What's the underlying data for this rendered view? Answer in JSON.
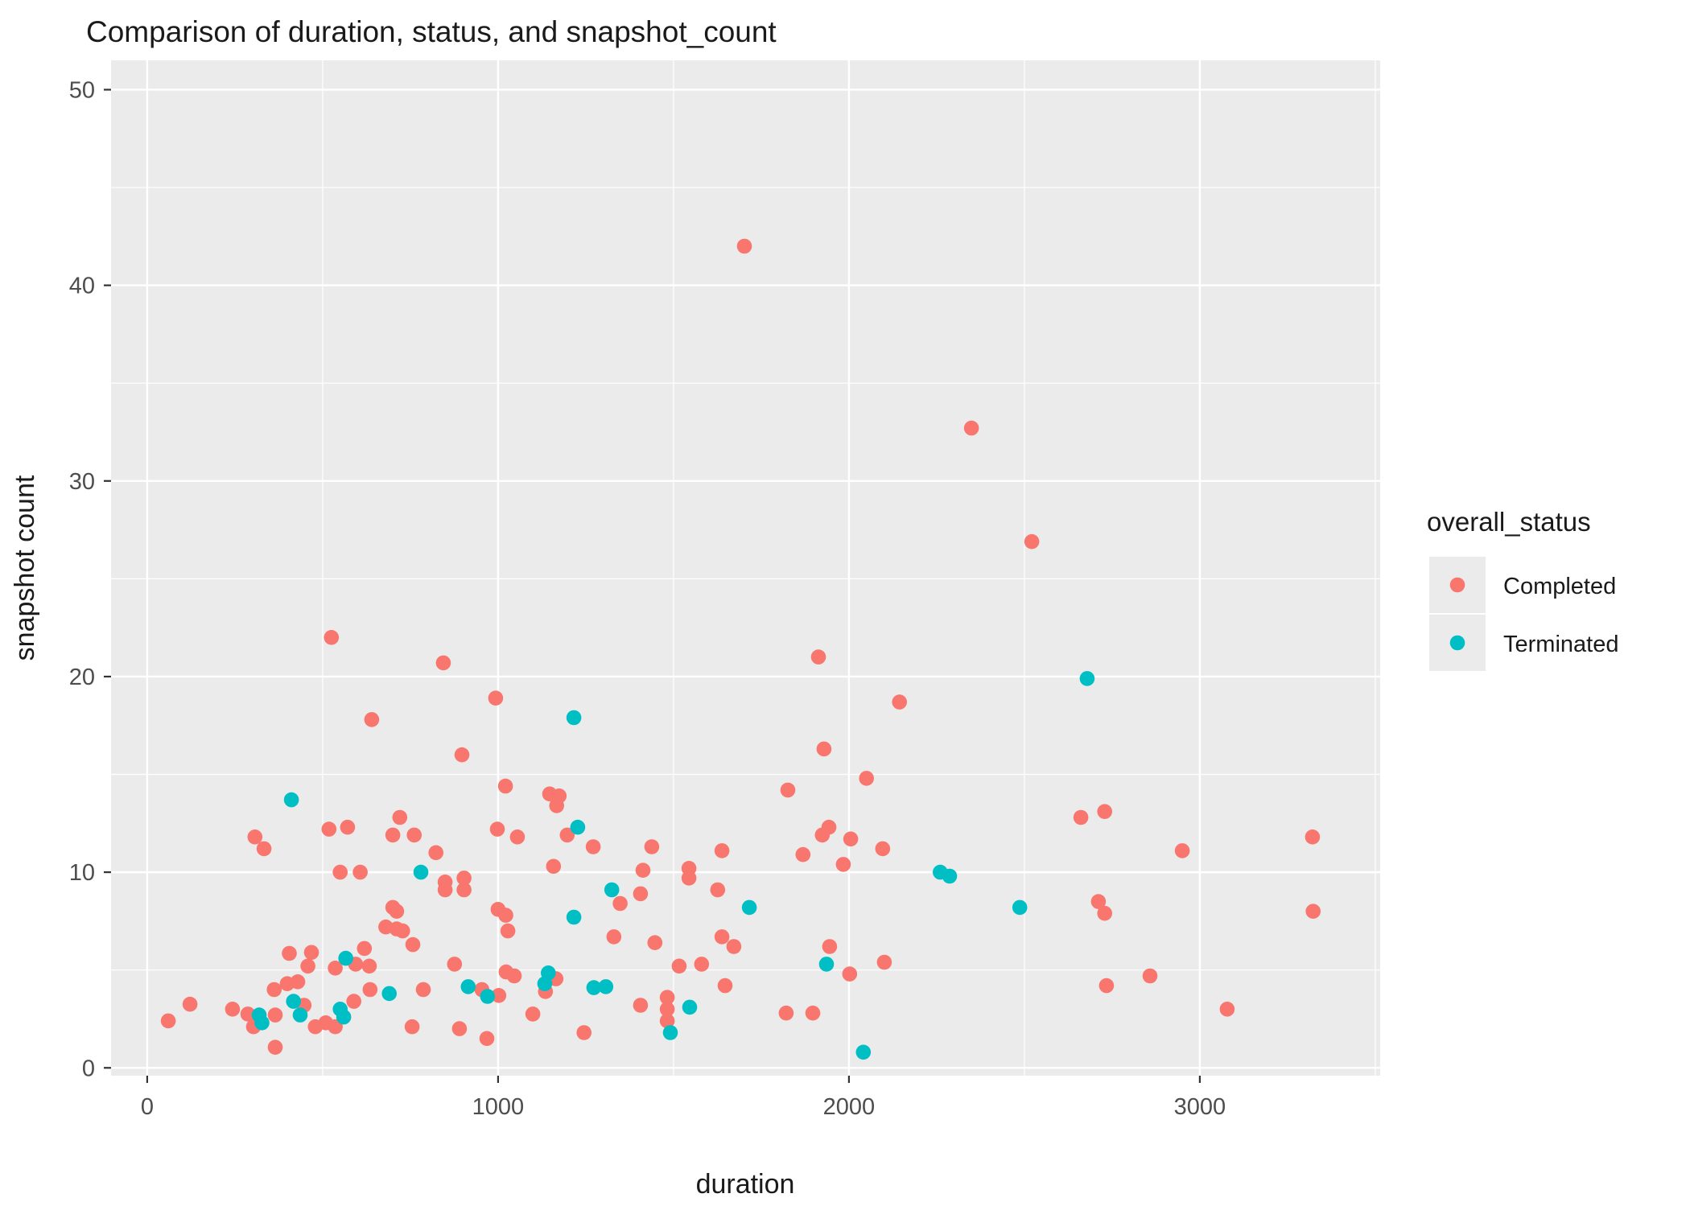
{
  "title": "Comparison of duration, status, and snapshot_count",
  "style": {
    "panel_bg": "#EBEBEB",
    "grid_color": "#FFFFFF",
    "tick_color": "#333333",
    "tick_label_color": "#4D4D4D",
    "point_radius": 9.3,
    "legend_key_bg": "#EBEBEB"
  },
  "legend": {
    "title": "overall_status",
    "items": [
      {
        "label": "Completed",
        "color": "#F8766D"
      },
      {
        "label": "Terminated",
        "color": "#00BFC4"
      }
    ]
  },
  "chart_data": {
    "type": "scatter",
    "title": "Comparison of duration, status, and snapshot_count",
    "xlabel": "duration",
    "ylabel": "snapshot count",
    "xlim": [
      -103,
      3514
    ],
    "ylim": [
      -0.4,
      51.5
    ],
    "x_major_ticks": [
      0,
      1000,
      2000,
      3000
    ],
    "x_minor_ticks": [
      500,
      1500,
      2500,
      3500
    ],
    "y_major_ticks": [
      0,
      10,
      20,
      30,
      40,
      50
    ],
    "y_minor_ticks": [
      5,
      15,
      25,
      35,
      45
    ],
    "grid": true,
    "legend_position": "right",
    "series": [
      {
        "name": "Completed",
        "color": "#F8766D",
        "points": [
          [
            60,
            2.4
          ],
          [
            122,
            3.25
          ],
          [
            243,
            3.0
          ],
          [
            287,
            2.75
          ],
          [
            303,
            2.1
          ],
          [
            307,
            11.8
          ],
          [
            333,
            11.2
          ],
          [
            362,
            4.0
          ],
          [
            365,
            2.7
          ],
          [
            365,
            1.05
          ],
          [
            399,
            4.3
          ],
          [
            405,
            5.85
          ],
          [
            468,
            5.9
          ],
          [
            429,
            4.4
          ],
          [
            447,
            3.2
          ],
          [
            458,
            5.2
          ],
          [
            479,
            2.1
          ],
          [
            509,
            2.3
          ],
          [
            518,
            12.2
          ],
          [
            525,
            22.0
          ],
          [
            536,
            2.1
          ],
          [
            536,
            5.1
          ],
          [
            550,
            10.0
          ],
          [
            571,
            12.3
          ],
          [
            589,
            3.4
          ],
          [
            594,
            5.3
          ],
          [
            607,
            10.0
          ],
          [
            619,
            6.1
          ],
          [
            633,
            5.2
          ],
          [
            635,
            4.0
          ],
          [
            640,
            17.8
          ],
          [
            680,
            7.2
          ],
          [
            700,
            8.2
          ],
          [
            700,
            11.9
          ],
          [
            711,
            8.0
          ],
          [
            711,
            7.1
          ],
          [
            720,
            12.8
          ],
          [
            728,
            7.0
          ],
          [
            757,
            6.3
          ],
          [
            761,
            11.9
          ],
          [
            787,
            4.0
          ],
          [
            755,
            2.1
          ],
          [
            823,
            11.0
          ],
          [
            844,
            20.7
          ],
          [
            849,
            9.5
          ],
          [
            849,
            9.1
          ],
          [
            876,
            5.3
          ],
          [
            890,
            2.0
          ],
          [
            897,
            16.0
          ],
          [
            903,
            9.7
          ],
          [
            903,
            9.1
          ],
          [
            954,
            4.0
          ],
          [
            968,
            1.5
          ],
          [
            993,
            18.9
          ],
          [
            998,
            12.2
          ],
          [
            1000,
            8.1
          ],
          [
            1002,
            3.7
          ],
          [
            1021,
            14.4
          ],
          [
            1022,
            7.8
          ],
          [
            1023,
            4.9
          ],
          [
            1028,
            7.0
          ],
          [
            1046,
            4.7
          ],
          [
            1055,
            11.8
          ],
          [
            1099,
            2.75
          ],
          [
            1135,
            3.9
          ],
          [
            1147,
            14.0
          ],
          [
            1158,
            10.3
          ],
          [
            1165,
            4.55
          ],
          [
            1167,
            13.4
          ],
          [
            1174,
            13.9
          ],
          [
            1197,
            11.9
          ],
          [
            1245,
            1.8
          ],
          [
            1271,
            11.3
          ],
          [
            1330,
            6.7
          ],
          [
            1348,
            8.4
          ],
          [
            1406,
            8.9
          ],
          [
            1406,
            3.2
          ],
          [
            1413,
            10.1
          ],
          [
            1438,
            11.3
          ],
          [
            1447,
            6.4
          ],
          [
            1482,
            3.6
          ],
          [
            1482,
            3.0
          ],
          [
            1482,
            2.4
          ],
          [
            1516,
            5.2
          ],
          [
            1544,
            10.2
          ],
          [
            1544,
            9.7
          ],
          [
            1580,
            5.3
          ],
          [
            1626,
            9.1
          ],
          [
            1638,
            11.1
          ],
          [
            1638,
            6.7
          ],
          [
            1647,
            4.2
          ],
          [
            1672,
            6.2
          ],
          [
            1702,
            42.0
          ],
          [
            1821,
            2.8
          ],
          [
            1826,
            14.2
          ],
          [
            1869,
            10.9
          ],
          [
            1897,
            2.8
          ],
          [
            1913,
            21.0
          ],
          [
            1924,
            11.9
          ],
          [
            1929,
            16.3
          ],
          [
            1943,
            12.3
          ],
          [
            1945,
            6.2
          ],
          [
            1984,
            10.4
          ],
          [
            2002,
            4.8
          ],
          [
            2005,
            11.7
          ],
          [
            2050,
            14.8
          ],
          [
            2096,
            11.2
          ],
          [
            2101,
            5.4
          ],
          [
            2144,
            18.7
          ],
          [
            2349,
            32.7
          ],
          [
            2521,
            26.9
          ],
          [
            2661,
            12.8
          ],
          [
            2711,
            8.5
          ],
          [
            2729,
            13.1
          ],
          [
            2729,
            7.9
          ],
          [
            2734,
            4.2
          ],
          [
            2858,
            4.7
          ],
          [
            2950,
            11.1
          ],
          [
            3078,
            3.0
          ],
          [
            3321,
            11.8
          ],
          [
            3323,
            8.0
          ]
        ]
      },
      {
        "name": "Terminated",
        "color": "#00BFC4",
        "points": [
          [
            319,
            2.7
          ],
          [
            327,
            2.3
          ],
          [
            411,
            13.7
          ],
          [
            417,
            3.4
          ],
          [
            436,
            2.7
          ],
          [
            550,
            3.0
          ],
          [
            560,
            2.6
          ],
          [
            566,
            5.6
          ],
          [
            690,
            3.8
          ],
          [
            780,
            10.0
          ],
          [
            915,
            4.15
          ],
          [
            970,
            3.65
          ],
          [
            1133,
            4.3
          ],
          [
            1143,
            4.85
          ],
          [
            1216,
            17.9
          ],
          [
            1216,
            7.7
          ],
          [
            1227,
            12.3
          ],
          [
            1273,
            4.1
          ],
          [
            1307,
            4.15
          ],
          [
            1324,
            9.1
          ],
          [
            1491,
            1.8
          ],
          [
            1546,
            3.1
          ],
          [
            1716,
            8.2
          ],
          [
            1936,
            5.3
          ],
          [
            2041,
            0.8
          ],
          [
            2260,
            10.0
          ],
          [
            2287,
            9.8
          ],
          [
            2487,
            8.2
          ],
          [
            2679,
            19.9
          ]
        ]
      }
    ]
  }
}
